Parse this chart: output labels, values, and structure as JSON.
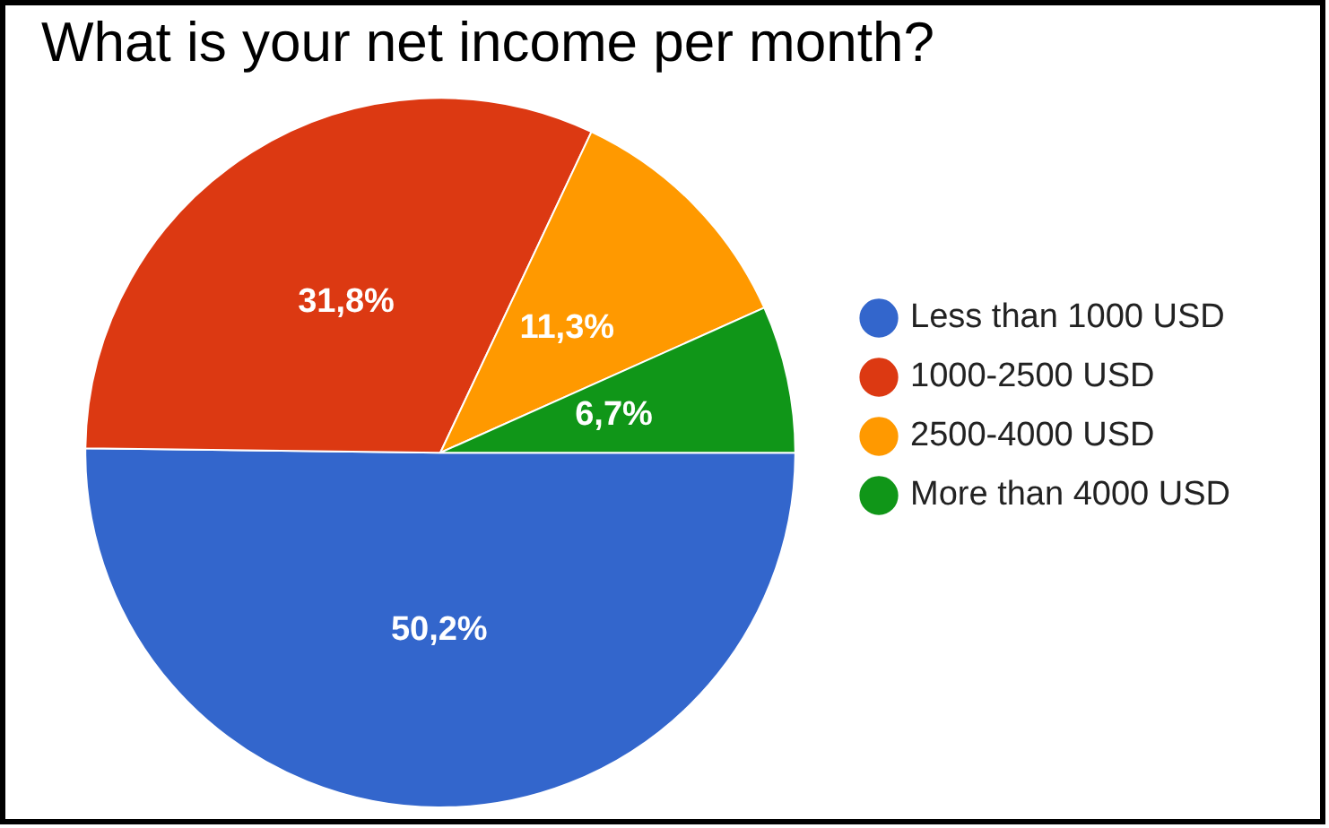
{
  "chart_data": {
    "type": "pie",
    "title": "What is your net income per month?",
    "categories": [
      "Less than 1000 USD",
      "1000-2500 USD",
      "2500-4000 USD",
      "More than 4000 USD"
    ],
    "values": [
      50.2,
      31.8,
      11.3,
      6.7
    ],
    "value_labels": [
      "50,2%",
      "31,8%",
      "11,3%",
      "6,7%"
    ],
    "colors": [
      "#3366cc",
      "#dc3912",
      "#ff9900",
      "#109618"
    ],
    "legend": "right"
  }
}
